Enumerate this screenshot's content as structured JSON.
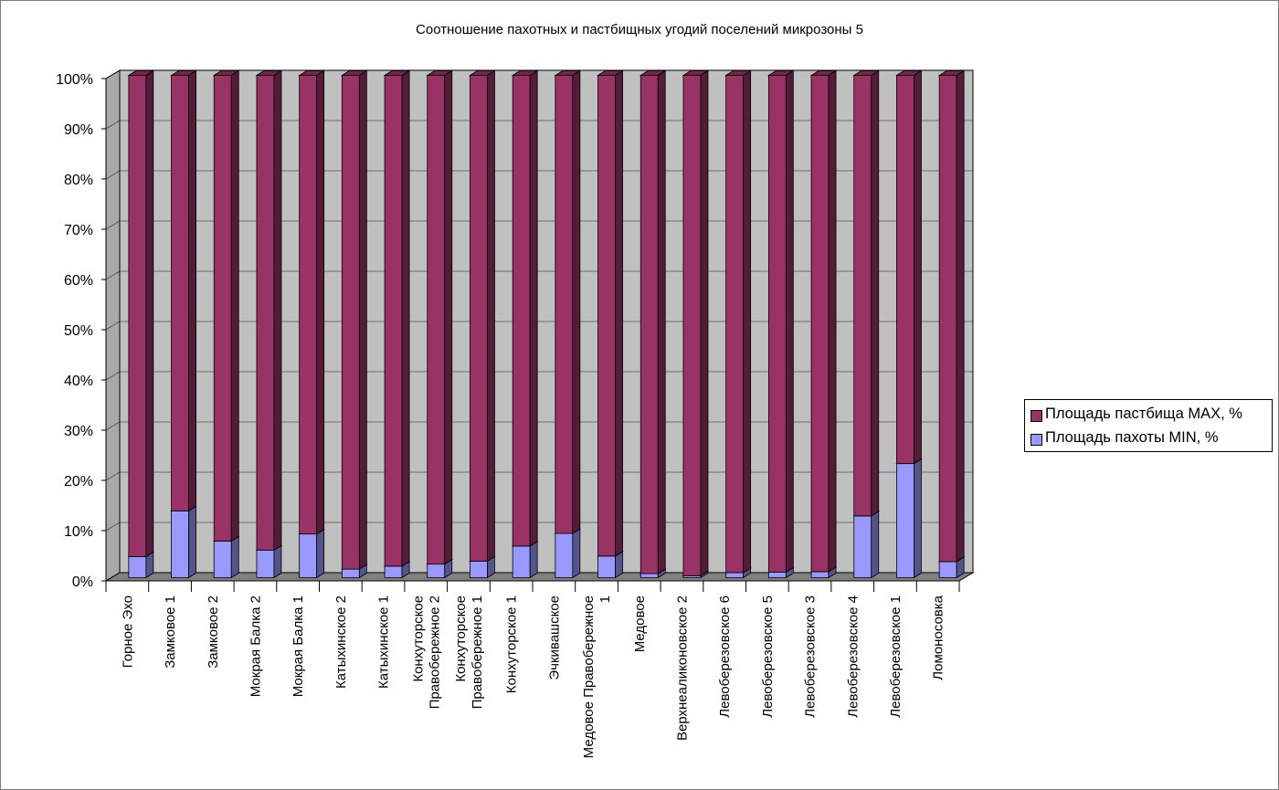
{
  "chart_data": {
    "type": "bar",
    "stacked": "percent",
    "title": "Соотношение пахотных и пастбищных угодий поселений микрозоны 5",
    "categories": [
      "Горное Эхо",
      "Замковое 1",
      "Замковое 2",
      "Мокрая Балка 2",
      "Мокрая Балка 1",
      "Катыхинское 2",
      "Катыхинское 1",
      "Конхуторское Правобережное 2",
      "Конхуторское Правобережное 1",
      "Конхуторское 1",
      "Эчкивашское",
      "Медовое Правобережное 1",
      "Медовое",
      "Верхнеаликоновское 2",
      "Левоберезовское 6",
      "Левоберезовское 5",
      "Левоберезовское 3",
      "Левоберезовское 4",
      "Левоберезовское 1",
      "Ломоносовка"
    ],
    "category_lines": [
      [
        "Горное Эхо"
      ],
      [
        "Замковое 1"
      ],
      [
        "Замковое 2"
      ],
      [
        "Мокрая Балка 2"
      ],
      [
        "Мокрая Балка 1"
      ],
      [
        "Катыхинское 2"
      ],
      [
        "Катыхинское 1"
      ],
      [
        "Конхуторское",
        "Правобережное 2"
      ],
      [
        "Конхуторское",
        "Правобережное 1"
      ],
      [
        "Конхуторское 1"
      ],
      [
        "Эчкивашское"
      ],
      [
        "Медовое Правобережное",
        "1"
      ],
      [
        "Медовое"
      ],
      [
        "Верхнеаликоновское 2"
      ],
      [
        "Левоберезовское 6"
      ],
      [
        "Левоберезовское 5"
      ],
      [
        "Левоберезовское 3"
      ],
      [
        "Левоберезовское 4"
      ],
      [
        "Левоберезовское 1"
      ],
      [
        "Ломоносовка"
      ]
    ],
    "series": [
      {
        "name": "Площадь пахоты MIN, %",
        "color": "#9999ff",
        "values": [
          4.2,
          13.3,
          7.3,
          5.5,
          8.7,
          1.7,
          2.3,
          2.7,
          3.3,
          6.3,
          8.8,
          4.3,
          0.8,
          0.4,
          1.0,
          1.1,
          1.2,
          12.3,
          22.7,
          3.2
        ]
      },
      {
        "name": "Площадь пастбища MAX, %",
        "color": "#993366",
        "values": [
          95.8,
          86.7,
          92.7,
          94.5,
          91.3,
          98.3,
          97.7,
          97.3,
          96.7,
          93.7,
          91.2,
          95.7,
          99.2,
          99.6,
          99.0,
          98.9,
          98.8,
          87.7,
          77.3,
          96.8
        ]
      }
    ],
    "y_ticks": [
      "0%",
      "10%",
      "20%",
      "30%",
      "40%",
      "50%",
      "60%",
      "70%",
      "80%",
      "90%",
      "100%"
    ],
    "ylim": [
      0,
      100
    ],
    "grid": true,
    "legend_position": "right",
    "legend": [
      "Площадь пастбища MAX, %",
      "Площадь пахоты MIN, %"
    ],
    "style": {
      "wall_color": "#c0c0c0",
      "floor_color": "#808080",
      "grid_color": "#000000"
    }
  }
}
